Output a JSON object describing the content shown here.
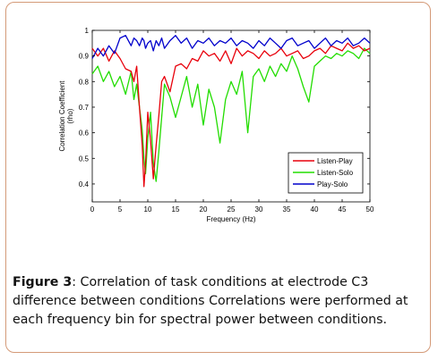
{
  "figure": {
    "label": "Figure 3",
    "caption_text": ": Correlation of task conditions at electrode C3 difference between conditions Correlations were performed at each frequency bin for spectral power between conditions."
  },
  "chart_data": {
    "type": "line",
    "xlabel": "Frequency (Hz)",
    "ylabel": "Correlation Coefficient",
    "ylabel2": "(rho)",
    "xlim": [
      0,
      50
    ],
    "ylim": [
      0.33,
      1.0
    ],
    "xticks": [
      0,
      5,
      10,
      15,
      20,
      25,
      30,
      35,
      40,
      45,
      50
    ],
    "yticks": [
      0.4,
      0.5,
      0.6,
      0.7,
      0.8,
      0.9,
      1
    ],
    "ytick_labels": [
      "0.4",
      "0.5",
      "0.6",
      "0.7",
      "0.8",
      "0.9",
      "1"
    ],
    "grid": false,
    "legend_position": "lower-right",
    "x": [
      0,
      1,
      2,
      3,
      4,
      5,
      6,
      7,
      7.5,
      8,
      8.5,
      9,
      9.3,
      9.6,
      10,
      10.5,
      11,
      11.5,
      12,
      12.5,
      13,
      14,
      15,
      16,
      17,
      18,
      19,
      20,
      21,
      22,
      23,
      24,
      25,
      26,
      27,
      28,
      29,
      30,
      31,
      32,
      33,
      34,
      35,
      36,
      37,
      38,
      39,
      40,
      41,
      42,
      43,
      44,
      45,
      46,
      47,
      48,
      49,
      50
    ],
    "series": [
      {
        "name": "Listen-Play",
        "color": "#e8000b",
        "values": [
          0.93,
          0.9,
          0.93,
          0.88,
          0.92,
          0.89,
          0.85,
          0.84,
          0.8,
          0.86,
          0.7,
          0.55,
          0.39,
          0.48,
          0.68,
          0.57,
          0.42,
          0.55,
          0.67,
          0.8,
          0.82,
          0.76,
          0.86,
          0.87,
          0.85,
          0.89,
          0.88,
          0.92,
          0.9,
          0.91,
          0.88,
          0.92,
          0.87,
          0.93,
          0.9,
          0.92,
          0.91,
          0.89,
          0.92,
          0.9,
          0.91,
          0.93,
          0.9,
          0.91,
          0.92,
          0.89,
          0.9,
          0.92,
          0.93,
          0.91,
          0.94,
          0.93,
          0.92,
          0.95,
          0.93,
          0.94,
          0.92,
          0.93
        ]
      },
      {
        "name": "Listen-Solo",
        "color": "#22dd00",
        "values": [
          0.83,
          0.86,
          0.8,
          0.84,
          0.78,
          0.82,
          0.75,
          0.84,
          0.73,
          0.79,
          0.7,
          0.61,
          0.5,
          0.44,
          0.58,
          0.68,
          0.48,
          0.41,
          0.53,
          0.66,
          0.79,
          0.74,
          0.66,
          0.74,
          0.82,
          0.7,
          0.79,
          0.63,
          0.77,
          0.7,
          0.56,
          0.73,
          0.8,
          0.75,
          0.84,
          0.6,
          0.82,
          0.85,
          0.8,
          0.86,
          0.82,
          0.87,
          0.84,
          0.9,
          0.85,
          0.78,
          0.72,
          0.86,
          0.88,
          0.9,
          0.89,
          0.91,
          0.9,
          0.92,
          0.91,
          0.89,
          0.93,
          0.91
        ]
      },
      {
        "name": "Play-Solo",
        "color": "#0000cc",
        "values": [
          0.89,
          0.93,
          0.9,
          0.94,
          0.91,
          0.97,
          0.98,
          0.94,
          0.97,
          0.96,
          0.94,
          0.97,
          0.96,
          0.93,
          0.95,
          0.96,
          0.92,
          0.96,
          0.94,
          0.97,
          0.93,
          0.96,
          0.98,
          0.95,
          0.97,
          0.93,
          0.96,
          0.95,
          0.97,
          0.94,
          0.96,
          0.95,
          0.97,
          0.94,
          0.96,
          0.95,
          0.93,
          0.96,
          0.94,
          0.97,
          0.95,
          0.93,
          0.96,
          0.97,
          0.94,
          0.95,
          0.96,
          0.93,
          0.95,
          0.97,
          0.94,
          0.96,
          0.95,
          0.97,
          0.94,
          0.95,
          0.97,
          0.95
        ]
      }
    ]
  }
}
